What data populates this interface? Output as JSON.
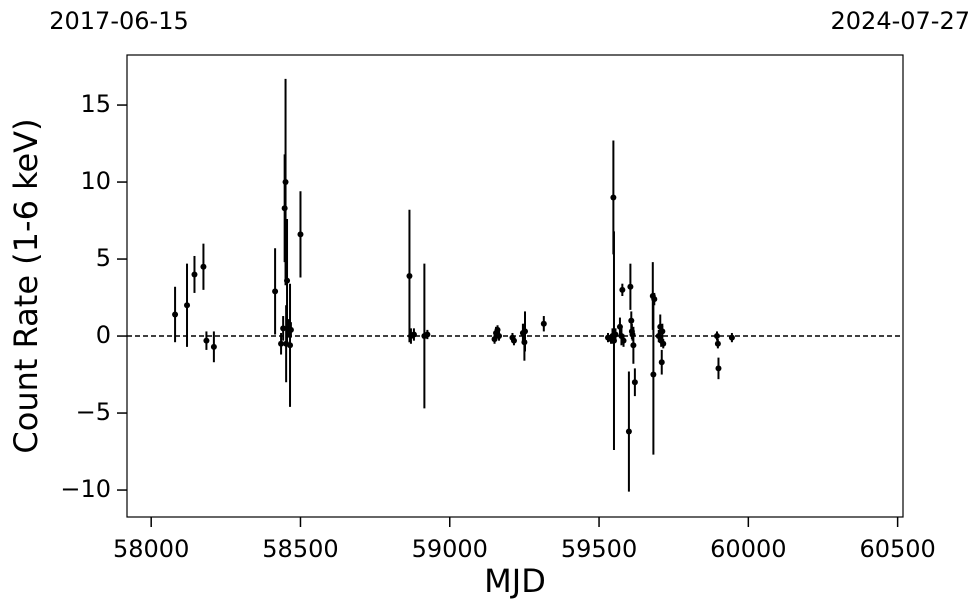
{
  "chart_data": {
    "type": "errorbar",
    "xlabel": "MJD",
    "ylabel": "Count Rate (1-6 keV)",
    "xlim": [
      57919,
      60518
    ],
    "ylim": [
      -11.75,
      18.25
    ],
    "xticks": [
      58000,
      58500,
      59000,
      59500,
      60000,
      60500
    ],
    "yticks": [
      {
        "value": -10,
        "label": "−10"
      },
      {
        "value": -5,
        "label": "−5"
      },
      0,
      5,
      10,
      15
    ],
    "x2ticks": [
      {
        "value": 57919,
        "label": "2017-06-15"
      },
      {
        "value": 60518,
        "label": "2024-07-27"
      }
    ],
    "hline": 0,
    "series": [
      {
        "color": "#000000",
        "x": [
          58080,
          58120,
          58145,
          58175,
          58185,
          58210,
          58415,
          58435,
          58442,
          58447,
          58450,
          58452,
          58455,
          58460,
          58465,
          58468,
          58500,
          58865,
          58870,
          58880,
          58915,
          58925,
          59150,
          59155,
          59160,
          59165,
          59210,
          59215,
          59245,
          59250,
          59252,
          59315,
          59530,
          59540,
          59545,
          59548,
          59550,
          59555,
          59570,
          59575,
          59578,
          59582,
          59600,
          59605,
          59608,
          59610,
          59612,
          59615,
          59620,
          59680,
          59682,
          59685,
          59700,
          59705,
          59708,
          59710,
          59712,
          59715,
          59895,
          59898,
          59900,
          59945
        ],
        "values": [
          1.4,
          2.0,
          4.0,
          4.5,
          -0.3,
          -0.7,
          2.9,
          -0.5,
          0.5,
          8.3,
          10.0,
          -0.5,
          3.6,
          0.5,
          -0.6,
          0.4,
          6.6,
          3.9,
          0.0,
          0.1,
          0.0,
          0.1,
          -0.2,
          0.2,
          0.4,
          0.0,
          -0.1,
          -0.3,
          0.2,
          -0.4,
          0.3,
          0.8,
          -0.1,
          -0.2,
          0.0,
          9.0,
          -0.3,
          0.1,
          0.6,
          0.0,
          3.0,
          -0.3,
          -6.2,
          3.2,
          1.0,
          0.3,
          0.1,
          -0.6,
          -3.0,
          2.6,
          -2.5,
          2.4,
          0.0,
          0.6,
          -0.3,
          -1.7,
          0.3,
          -0.5,
          0.0,
          -0.5,
          -2.1,
          -0.1
        ],
        "errors": [
          1.8,
          2.7,
          1.2,
          1.5,
          0.6,
          1.0,
          2.8,
          0.7,
          0.8,
          3.5,
          6.7,
          2.5,
          4.0,
          0.6,
          4.0,
          0.5,
          2.8,
          4.3,
          0.5,
          0.4,
          4.7,
          0.3,
          0.3,
          0.4,
          0.3,
          0.3,
          0.3,
          0.3,
          0.6,
          1.2,
          1.3,
          0.5,
          0.3,
          0.3,
          0.5,
          3.7,
          7.1,
          0.4,
          0.6,
          0.6,
          0.4,
          0.4,
          3.9,
          1.5,
          0.6,
          0.5,
          0.4,
          1.2,
          0.9,
          2.2,
          5.2,
          0.4,
          0.4,
          0.8,
          0.4,
          0.8,
          0.5,
          0.3,
          0.3,
          0.3,
          0.7,
          0.3
        ]
      }
    ]
  }
}
